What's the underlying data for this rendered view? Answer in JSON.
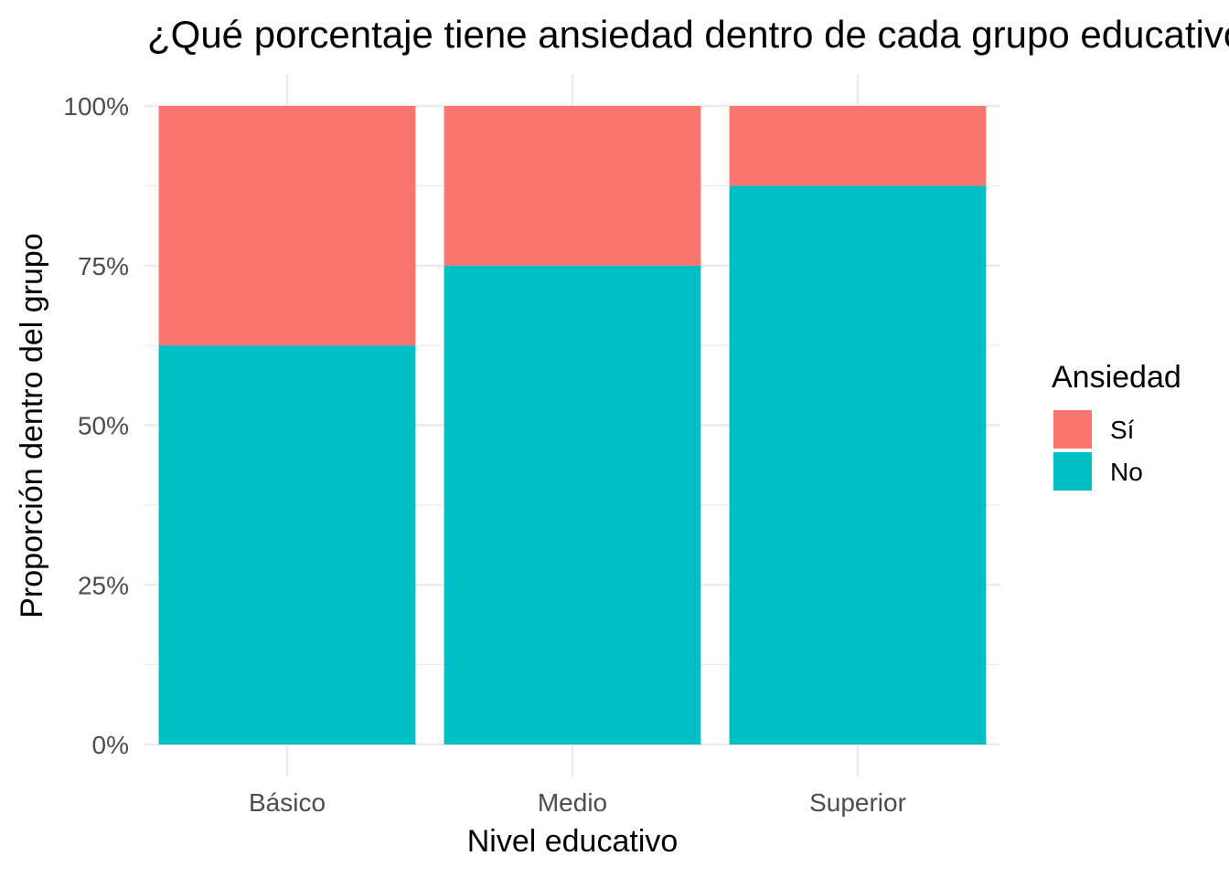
{
  "chart_data": {
    "type": "bar",
    "stacked": true,
    "title": "¿Qué porcentaje tiene ansiedad dentro de cada grupo educativo?",
    "xlabel": "Nivel educativo",
    "ylabel": "Proporción dentro del grupo",
    "categories": [
      "Básico",
      "Medio",
      "Superior"
    ],
    "yticks": [
      "0%",
      "25%",
      "50%",
      "75%",
      "100%"
    ],
    "ylim": [
      0,
      1
    ],
    "grid": true,
    "legend": {
      "title": "Ansiedad",
      "position": "right"
    },
    "series": [
      {
        "name": "Sí",
        "color": "#F8766D",
        "values": [
          0.375,
          0.25,
          0.125
        ]
      },
      {
        "name": "No",
        "color": "#00BFC4",
        "values": [
          0.625,
          0.75,
          0.875
        ]
      }
    ]
  }
}
